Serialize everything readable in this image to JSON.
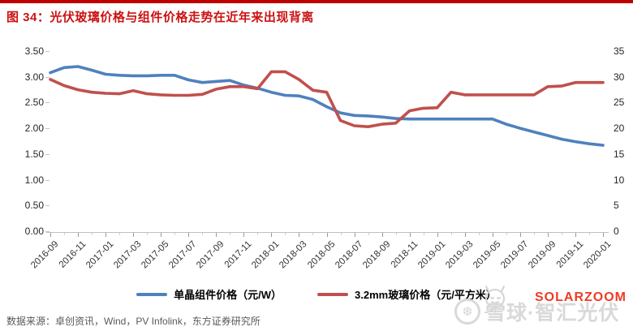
{
  "page": {
    "title": "图 34：光伏玻璃价格与组件价格走势在近年来出现背离",
    "source": "数据来源：卓创资讯，Wind，PV Infolink，东方证券研究所"
  },
  "watermarks": {
    "solarzoom": "SOLARZOOM",
    "xueqiu_logo_glyph": "❆",
    "xueqiu": "雪球·智汇光伏"
  },
  "chart_data": {
    "type": "line",
    "title": "光伏玻璃价格与组件价格走势在近年来出现背离",
    "grid": false,
    "legend_position": "bottom",
    "categories": [
      "2016-09",
      "2016-10",
      "2016-11",
      "2016-12",
      "2017-01",
      "2017-02",
      "2017-03",
      "2017-04",
      "2017-05",
      "2017-06",
      "2017-07",
      "2017-08",
      "2017-09",
      "2017-10",
      "2017-11",
      "2017-12",
      "2018-01",
      "2018-02",
      "2018-03",
      "2018-04",
      "2018-05",
      "2018-06",
      "2018-07",
      "2018-08",
      "2018-09",
      "2018-10",
      "2018-11",
      "2018-12",
      "2019-01",
      "2019-02",
      "2019-03",
      "2019-04",
      "2019-05",
      "2019-06",
      "2019-07",
      "2019-08",
      "2019-09",
      "2019-10",
      "2019-11",
      "2019-12",
      "2020-01"
    ],
    "x_axis": {
      "tick_labels": [
        "2016-09",
        "2016-11",
        "2017-01",
        "2017-03",
        "2017-05",
        "2017-07",
        "2017-09",
        "2017-11",
        "2018-01",
        "2018-03",
        "2018-05",
        "2018-07",
        "2018-09",
        "2018-11",
        "2019-01",
        "2019-03",
        "2019-05",
        "2019-07",
        "2019-09",
        "2019-11",
        "2020-01"
      ],
      "label_rotation_deg": -45
    },
    "y_axis_left": {
      "min": 0,
      "max": 3.5,
      "tick_labels": [
        "3.50",
        "3.00",
        "2.50",
        "2.00",
        "1.50",
        "1.00",
        "0.50",
        "0.00"
      ]
    },
    "y_axis_right": {
      "min": 0,
      "max": 35,
      "tick_labels": [
        "35",
        "30",
        "25",
        "20",
        "15",
        "10",
        "5",
        "0"
      ]
    },
    "series": [
      {
        "name": "单晶组件价格（元/W）",
        "axis": "left",
        "color": "#4F81BD",
        "values": [
          3.08,
          3.18,
          3.2,
          3.13,
          3.05,
          3.03,
          3.02,
          3.02,
          3.03,
          3.03,
          2.94,
          2.89,
          2.91,
          2.93,
          2.84,
          2.78,
          2.7,
          2.64,
          2.63,
          2.56,
          2.42,
          2.3,
          2.25,
          2.24,
          2.22,
          2.19,
          2.18,
          2.18,
          2.18,
          2.18,
          2.18,
          2.18,
          2.18,
          2.08,
          2.0,
          1.93,
          1.86,
          1.79,
          1.74,
          1.7,
          1.67
        ]
      },
      {
        "name": "3.2mm玻璃价格（元/平方米）",
        "axis": "right",
        "color": "#C0504D",
        "values": [
          29.5,
          28.3,
          27.5,
          27.0,
          26.8,
          26.7,
          27.3,
          26.7,
          26.5,
          26.4,
          26.4,
          26.6,
          27.6,
          28.1,
          28.1,
          27.7,
          31.0,
          31.0,
          29.5,
          27.4,
          27.0,
          21.5,
          20.5,
          20.3,
          20.8,
          21.0,
          23.4,
          23.9,
          24.0,
          27.0,
          26.5,
          26.5,
          26.5,
          26.5,
          26.5,
          26.5,
          28.1,
          28.2,
          28.9,
          28.9,
          28.9
        ]
      }
    ]
  }
}
